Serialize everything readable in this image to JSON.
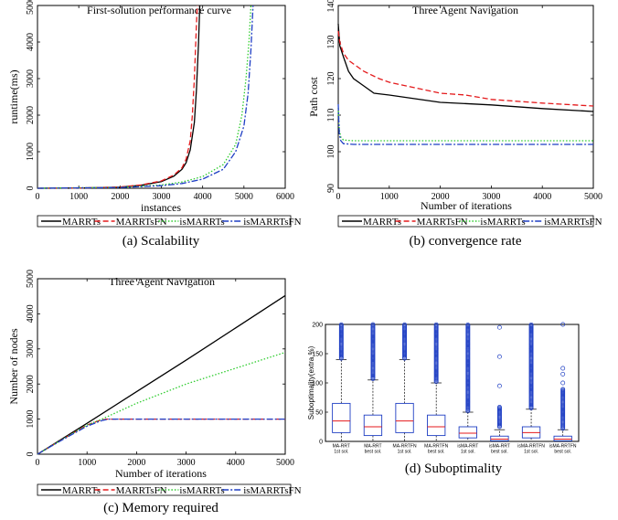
{
  "chart_data": [
    {
      "type": "line",
      "id": "scalability",
      "title": "First-solution performance curve",
      "xlabel": "instances",
      "ylabel": "runtime(ms)",
      "xlim": [
        0,
        6000
      ],
      "ylim": [
        0,
        5000
      ],
      "xticks": [
        "0",
        "1000",
        "2000",
        "3000",
        "4000",
        "5000",
        "6000"
      ],
      "yticks": [
        "0",
        "1000",
        "2000",
        "3000",
        "4000",
        "5000"
      ],
      "grid": false,
      "legend_position": "bottom",
      "caption": "(a)  Scalability",
      "series": [
        {
          "name": "MARRTs",
          "color": "#000000",
          "dash": "solid",
          "points": [
            [
              0,
              0
            ],
            [
              1000,
              5
            ],
            [
              2000,
              30
            ],
            [
              2500,
              80
            ],
            [
              3000,
              180
            ],
            [
              3300,
              330
            ],
            [
              3500,
              520
            ],
            [
              3600,
              700
            ],
            [
              3700,
              1050
            ],
            [
              3800,
              1800
            ],
            [
              3850,
              2700
            ],
            [
              3900,
              4000
            ],
            [
              3930,
              5000
            ]
          ]
        },
        {
          "name": "MARRTsFN",
          "color": "#e41a1c",
          "dash": "dashed",
          "points": [
            [
              0,
              0
            ],
            [
              1000,
              5
            ],
            [
              2000,
              35
            ],
            [
              2500,
              90
            ],
            [
              3000,
              200
            ],
            [
              3300,
              360
            ],
            [
              3500,
              560
            ],
            [
              3600,
              800
            ],
            [
              3700,
              1300
            ],
            [
              3750,
              2000
            ],
            [
              3800,
              3000
            ],
            [
              3850,
              4500
            ],
            [
              3870,
              5000
            ]
          ]
        },
        {
          "name": "isMARRTs",
          "color": "#2ecc2e",
          "dash": "dotted",
          "points": [
            [
              0,
              0
            ],
            [
              2000,
              25
            ],
            [
              3000,
              90
            ],
            [
              3500,
              170
            ],
            [
              4000,
              320
            ],
            [
              4500,
              650
            ],
            [
              4800,
              1200
            ],
            [
              4950,
              2000
            ],
            [
              5050,
              3000
            ],
            [
              5120,
              4000
            ],
            [
              5170,
              5000
            ]
          ]
        },
        {
          "name": "isMARRTsFN",
          "color": "#1f3fc4",
          "dash": "dashdot",
          "points": [
            [
              0,
              0
            ],
            [
              2000,
              20
            ],
            [
              3000,
              70
            ],
            [
              3500,
              130
            ],
            [
              4000,
              250
            ],
            [
              4500,
              520
            ],
            [
              4800,
              1000
            ],
            [
              5000,
              1700
            ],
            [
              5100,
              2600
            ],
            [
              5170,
              3800
            ],
            [
              5220,
              5000
            ]
          ]
        }
      ]
    },
    {
      "type": "line",
      "id": "convergence",
      "title": "Three Agent Navigation",
      "xlabel": "Number of iterations",
      "ylabel": "Path cost",
      "xlim": [
        0,
        5000
      ],
      "ylim": [
        90,
        140
      ],
      "xticks": [
        "0",
        "1000",
        "2000",
        "3000",
        "4000",
        "5000"
      ],
      "yticks": [
        "90",
        "100",
        "110",
        "120",
        "130",
        "140"
      ],
      "grid": false,
      "legend_position": "bottom",
      "caption": "(b)  convergence rate",
      "series": [
        {
          "name": "MARRTs",
          "color": "#000000",
          "dash": "solid",
          "points": [
            [
              0,
              135
            ],
            [
              30,
              129
            ],
            [
              100,
              126
            ],
            [
              200,
              122
            ],
            [
              300,
              120
            ],
            [
              500,
              118
            ],
            [
              700,
              116
            ],
            [
              1000,
              115.5
            ],
            [
              1500,
              114.5
            ],
            [
              2000,
              113.5
            ],
            [
              3000,
              112.8
            ],
            [
              4000,
              111.8
            ],
            [
              5000,
              111
            ]
          ]
        },
        {
          "name": "MARRTsFN",
          "color": "#e41a1c",
          "dash": "dashed",
          "points": [
            [
              0,
              133
            ],
            [
              30,
              130
            ],
            [
              100,
              127
            ],
            [
              200,
              125
            ],
            [
              300,
              124
            ],
            [
              500,
              122
            ],
            [
              800,
              120
            ],
            [
              1000,
              119
            ],
            [
              1500,
              117.5
            ],
            [
              2000,
              116
            ],
            [
              2500,
              115.5
            ],
            [
              3000,
              114.3
            ],
            [
              4000,
              113.3
            ],
            [
              5000,
              112.5
            ]
          ]
        },
        {
          "name": "isMARRTs",
          "color": "#2ecc2e",
          "dash": "dotted",
          "points": [
            [
              0,
              112
            ],
            [
              20,
              106
            ],
            [
              50,
              104
            ],
            [
              100,
              103.2
            ],
            [
              300,
              103
            ],
            [
              1000,
              103
            ],
            [
              5000,
              103
            ]
          ]
        },
        {
          "name": "isMARRTsFN",
          "color": "#1f3fc4",
          "dash": "dashdot",
          "points": [
            [
              0,
              113
            ],
            [
              20,
              105
            ],
            [
              50,
              103
            ],
            [
              100,
              102.2
            ],
            [
              300,
              102
            ],
            [
              1000,
              102
            ],
            [
              5000,
              102
            ]
          ]
        }
      ]
    },
    {
      "type": "line",
      "id": "memory",
      "title": "Three Agent Navigation",
      "xlabel": "Number of iterations",
      "ylabel": "Number of nodes",
      "xlim": [
        0,
        5000
      ],
      "ylim": [
        0,
        5000
      ],
      "xticks": [
        "0",
        "1000",
        "2000",
        "3000",
        "4000",
        "5000"
      ],
      "yticks": [
        "0",
        "1000",
        "2000",
        "3000",
        "4000",
        "5000"
      ],
      "grid": false,
      "legend_position": "bottom",
      "caption": "(c)  Memory required",
      "series": [
        {
          "name": "MARRTs",
          "color": "#000000",
          "dash": "solid",
          "points": [
            [
              0,
              0
            ],
            [
              1000,
              880
            ],
            [
              2000,
              1780
            ],
            [
              3000,
              2680
            ],
            [
              4000,
              3600
            ],
            [
              5000,
              4520
            ]
          ]
        },
        {
          "name": "MARRTsFN",
          "color": "#e41a1c",
          "dash": "dashed",
          "points": [
            [
              0,
              0
            ],
            [
              500,
              420
            ],
            [
              1000,
              830
            ],
            [
              1250,
              960
            ],
            [
              1400,
              1000
            ],
            [
              5000,
              1000
            ]
          ]
        },
        {
          "name": "isMARRTs",
          "color": "#2ecc2e",
          "dash": "dotted",
          "points": [
            [
              0,
              0
            ],
            [
              500,
              420
            ],
            [
              1000,
              830
            ],
            [
              1300,
              1000
            ],
            [
              2000,
              1450
            ],
            [
              3000,
              2000
            ],
            [
              4000,
              2450
            ],
            [
              5000,
              2900
            ]
          ]
        },
        {
          "name": "isMARRTsFN",
          "color": "#1f3fc4",
          "dash": "dashdot",
          "points": [
            [
              0,
              0
            ],
            [
              500,
              410
            ],
            [
              1000,
              800
            ],
            [
              1300,
              960
            ],
            [
              1450,
              1000
            ],
            [
              5000,
              1000
            ]
          ]
        }
      ]
    },
    {
      "type": "box",
      "id": "suboptimality",
      "ylabel": "Suboptimality(extra %)",
      "ylim": [
        0,
        200
      ],
      "yticks": [
        "0",
        "50",
        "100",
        "150",
        "200"
      ],
      "caption": "(d)  Suboptimality",
      "categories": [
        [
          "MA-RRT",
          "1st sol."
        ],
        [
          "MA-RRT",
          "best sol."
        ],
        [
          "MA-RRTFN",
          "1st sol."
        ],
        [
          "MA-RRTFN",
          "best sol."
        ],
        [
          "isMA-RRT",
          "1st sol."
        ],
        [
          "isMA-RRT",
          "best sol."
        ],
        [
          "isMA-RRTFN",
          "1st sol."
        ],
        [
          "isMA-RRTFN",
          "best sol."
        ]
      ],
      "boxes": [
        {
          "q1": 15,
          "median": 35,
          "q3": 65,
          "whisker_low": 0,
          "whisker_high": 140,
          "outliers_from": 142,
          "outliers_to": 200
        },
        {
          "q1": 10,
          "median": 25,
          "q3": 45,
          "whisker_low": 0,
          "whisker_high": 105,
          "outliers_from": 107,
          "outliers_to": 200
        },
        {
          "q1": 15,
          "median": 35,
          "q3": 65,
          "whisker_low": 0,
          "whisker_high": 140,
          "outliers_from": 142,
          "outliers_to": 200
        },
        {
          "q1": 10,
          "median": 25,
          "q3": 45,
          "whisker_low": 0,
          "whisker_high": 100,
          "outliers_from": 102,
          "outliers_to": 200
        },
        {
          "q1": 6,
          "median": 14,
          "q3": 25,
          "whisker_low": 0,
          "whisker_high": 50,
          "outliers_from": 52,
          "outliers_to": 200
        },
        {
          "q1": 1,
          "median": 4,
          "q3": 9,
          "whisker_low": 0,
          "whisker_high": 20,
          "outliers_from": 25,
          "outliers_to": 60,
          "outliers_sparse": [
            95,
            145,
            195
          ]
        },
        {
          "q1": 6,
          "median": 15,
          "q3": 25,
          "whisker_low": 0,
          "whisker_high": 55,
          "outliers_from": 57,
          "outliers_to": 200
        },
        {
          "q1": 1,
          "median": 4,
          "q3": 9,
          "whisker_low": 0,
          "whisker_high": 20,
          "outliers_from": 22,
          "outliers_to": 90,
          "outliers_sparse": [
            100,
            115,
            125,
            200
          ]
        }
      ],
      "box_color": "#1f3fc4",
      "median_color": "#e41a1c",
      "outlier_color": "#1f3fc4"
    }
  ],
  "legend": {
    "labels": [
      "MARRTs",
      "MARRTsFN",
      "isMARRTs",
      "isMARRTsFN"
    ]
  }
}
